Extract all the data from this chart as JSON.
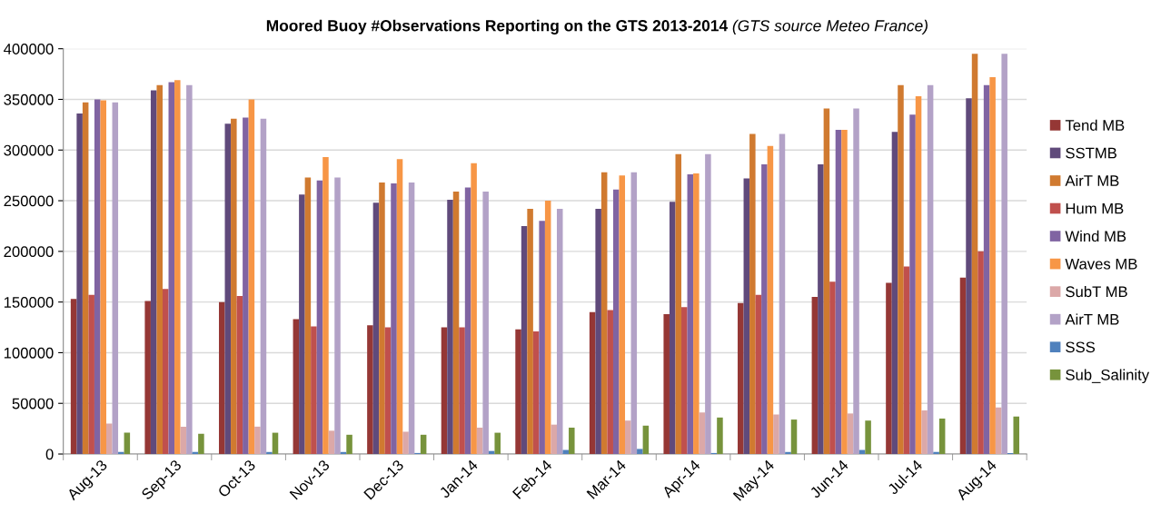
{
  "chart_data": {
    "type": "bar",
    "title": "Moored Buoy #Observations Reporting on the GTS 2013-2014",
    "subtitle": "(GTS source Meteo France)",
    "categories": [
      "Aug-13",
      "Sep-13",
      "Oct-13",
      "Nov-13",
      "Dec-13",
      "Jan-14",
      "Feb-14",
      "Mar-14",
      "Apr-14",
      "May-14",
      "Jun-14",
      "Jul-14",
      "Aug-14"
    ],
    "series": [
      {
        "name": "Tend MB",
        "color": "#953735",
        "values": [
          153000,
          151000,
          150000,
          133000,
          127000,
          125000,
          123000,
          140000,
          138000,
          149000,
          155000,
          169000,
          174000
        ]
      },
      {
        "name": "SSTMB",
        "color": "#604a7b",
        "values": [
          336000,
          359000,
          326000,
          256000,
          248000,
          251000,
          225000,
          242000,
          249000,
          272000,
          286000,
          318000,
          351000
        ]
      },
      {
        "name": "AirT MB",
        "color": "#d07a30",
        "values": [
          347000,
          364000,
          331000,
          273000,
          268000,
          259000,
          242000,
          278000,
          296000,
          316000,
          341000,
          364000,
          395000
        ]
      },
      {
        "name": "Hum MB",
        "color": "#c0504d",
        "values": [
          157000,
          163000,
          156000,
          126000,
          125000,
          125000,
          121000,
          142000,
          145000,
          157000,
          170000,
          185000,
          200000
        ]
      },
      {
        "name": "Wind MB",
        "color": "#8064a2",
        "values": [
          350000,
          367000,
          332000,
          270000,
          267000,
          263000,
          230000,
          261000,
          276000,
          286000,
          320000,
          335000,
          364000
        ]
      },
      {
        "name": "Waves MB",
        "color": "#f79646",
        "values": [
          349000,
          369000,
          350000,
          293000,
          291000,
          287000,
          250000,
          275000,
          277000,
          304000,
          320000,
          353000,
          372000
        ]
      },
      {
        "name": "SubT MB",
        "color": "#dba8a8",
        "values": [
          30000,
          27000,
          27000,
          23000,
          22000,
          26000,
          29000,
          33000,
          41000,
          39000,
          40000,
          43000,
          46000
        ]
      },
      {
        "name": "AirT MB",
        "color": "#b3a2c7",
        "values": [
          347000,
          364000,
          331000,
          273000,
          268000,
          259000,
          242000,
          278000,
          296000,
          316000,
          341000,
          364000,
          395000
        ]
      },
      {
        "name": "SSS",
        "color": "#4f81bd",
        "values": [
          2000,
          2000,
          2000,
          2000,
          1000,
          3000,
          4000,
          5000,
          1000,
          2000,
          4000,
          2000,
          1000
        ]
      },
      {
        "name": "Sub_Salinity",
        "color": "#77933c",
        "values": [
          21000,
          20000,
          21000,
          19000,
          19000,
          21000,
          26000,
          28000,
          36000,
          34000,
          33000,
          35000,
          37000
        ]
      }
    ],
    "ylim": [
      0,
      400000
    ],
    "yticks": [
      0,
      50000,
      100000,
      150000,
      200000,
      250000,
      300000,
      350000,
      400000
    ],
    "grid": "y",
    "legend": "right"
  }
}
